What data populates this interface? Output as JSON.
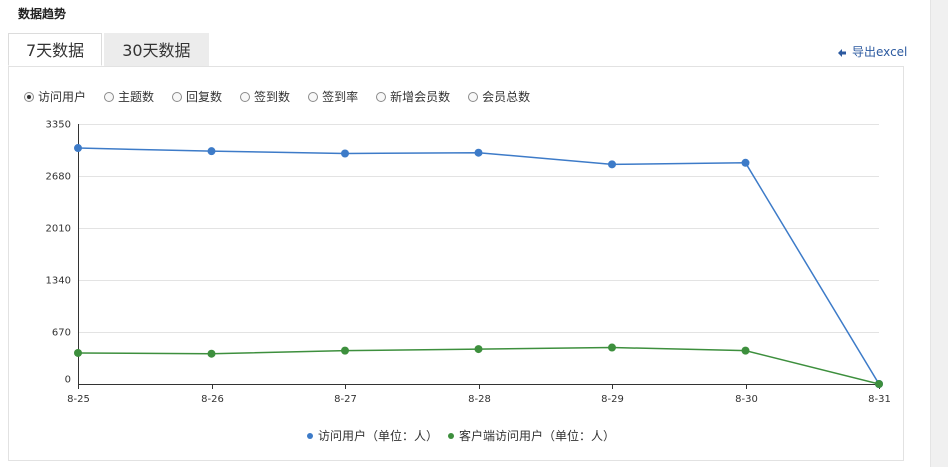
{
  "section_title": "数据趋势",
  "tabs": [
    {
      "label": "7天数据",
      "active": true
    },
    {
      "label": "30天数据",
      "active": false
    }
  ],
  "export_label": "导出excel",
  "radios": [
    {
      "label": "访问用户",
      "checked": true
    },
    {
      "label": "主题数",
      "checked": false
    },
    {
      "label": "回复数",
      "checked": false
    },
    {
      "label": "签到数",
      "checked": false
    },
    {
      "label": "签到率",
      "checked": false
    },
    {
      "label": "新增会员数",
      "checked": false
    },
    {
      "label": "会员总数",
      "checked": false
    }
  ],
  "chart_data": {
    "type": "line",
    "categories": [
      "8-25",
      "8-26",
      "8-27",
      "8-28",
      "8-29",
      "8-30",
      "8-31"
    ],
    "y_ticks": [
      0,
      670,
      1340,
      2010,
      2680,
      3350
    ],
    "ylim": [
      0,
      3350
    ],
    "grid": true,
    "legend_position": "bottom",
    "series": [
      {
        "name": "访问用户（单位：人）",
        "color": "#3d7bc8",
        "values": [
          3040,
          3000,
          2970,
          2980,
          2830,
          2850,
          0
        ]
      },
      {
        "name": "客户端访问用户（单位：人）",
        "color": "#3d8f3d",
        "values": [
          400,
          390,
          430,
          450,
          470,
          430,
          0
        ]
      }
    ]
  }
}
